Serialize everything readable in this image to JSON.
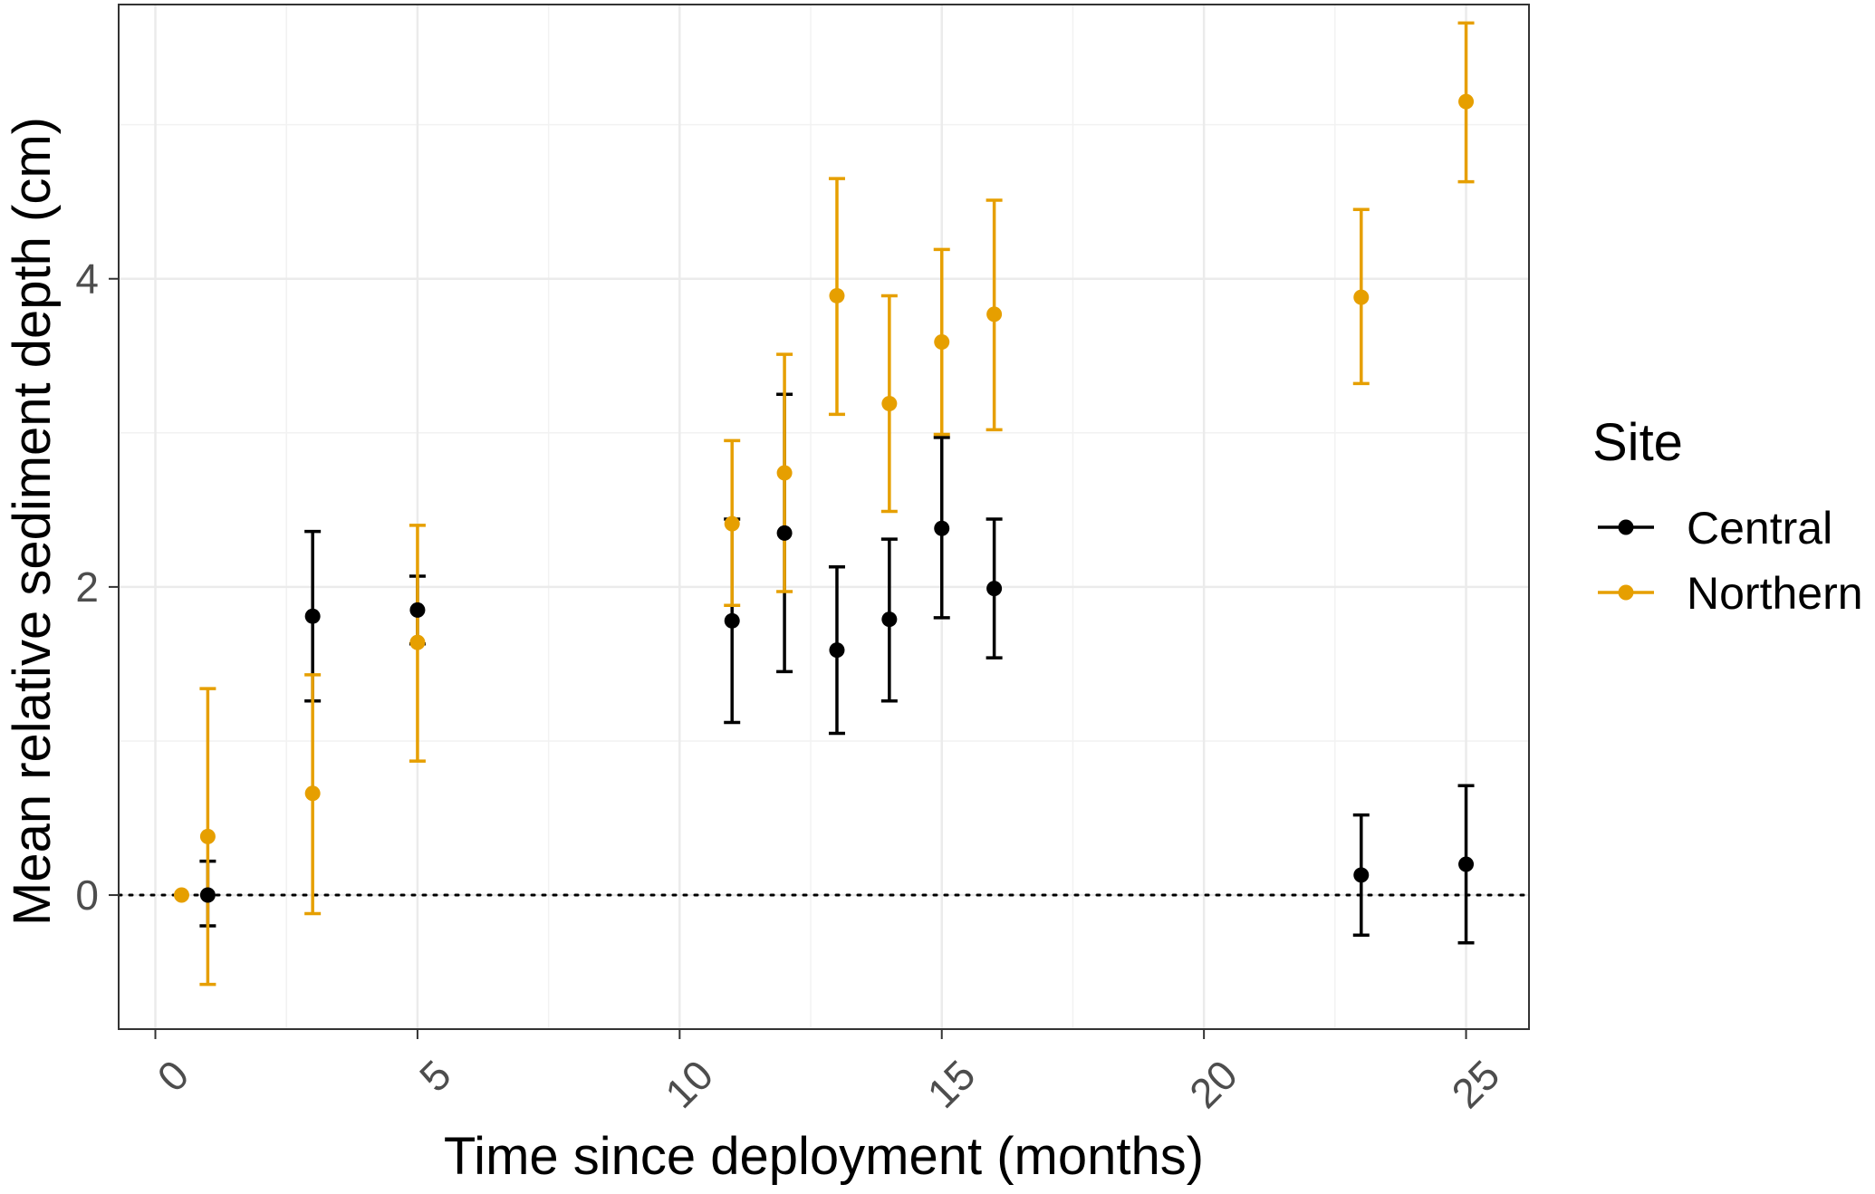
{
  "chart_data": {
    "type": "scatter",
    "title": "",
    "xlabel": "Time since deployment (months)",
    "ylabel": "Mean relative sediment depth (cm)",
    "xlim": [
      -0.7,
      26.2
    ],
    "ylim": [
      -0.87,
      5.78
    ],
    "x_ticks": [
      0,
      5,
      10,
      15,
      20,
      25
    ],
    "x_tick_labels": [
      "0",
      "5",
      "10",
      "15",
      "20",
      "25"
    ],
    "y_ticks": [
      0,
      2,
      4
    ],
    "y_tick_labels": [
      "0",
      "2",
      "4"
    ],
    "x_minor_gridlines": [
      2.5,
      7.5,
      12.5,
      17.5,
      22.5
    ],
    "y_minor_gridlines": [
      1,
      3,
      5
    ],
    "reference_line": {
      "y": 0,
      "style": "dotted"
    },
    "legend": {
      "title": "Site",
      "position": "right"
    },
    "series": [
      {
        "name": "Central",
        "color": "#000000",
        "points": [
          {
            "x": 1,
            "y": 0.0,
            "lower": -0.2,
            "upper": 0.22
          },
          {
            "x": 3,
            "y": 1.81,
            "lower": 1.26,
            "upper": 2.36
          },
          {
            "x": 5,
            "y": 1.85,
            "lower": 1.63,
            "upper": 2.07
          },
          {
            "x": 11,
            "y": 1.78,
            "lower": 1.12,
            "upper": 2.44
          },
          {
            "x": 12,
            "y": 2.35,
            "lower": 1.45,
            "upper": 3.25
          },
          {
            "x": 13,
            "y": 1.59,
            "lower": 1.05,
            "upper": 2.13
          },
          {
            "x": 14,
            "y": 1.79,
            "lower": 1.26,
            "upper": 2.31
          },
          {
            "x": 15,
            "y": 2.38,
            "lower": 1.8,
            "upper": 2.97
          },
          {
            "x": 16,
            "y": 1.99,
            "lower": 1.54,
            "upper": 2.44
          },
          {
            "x": 23,
            "y": 0.13,
            "lower": -0.26,
            "upper": 0.52
          },
          {
            "x": 25,
            "y": 0.2,
            "lower": -0.31,
            "upper": 0.71
          }
        ]
      },
      {
        "name": "Northern",
        "color": "#E69F00",
        "points": [
          {
            "x": 0.5,
            "y": 0.0,
            "lower": 0.0,
            "upper": 0.0
          },
          {
            "x": 1,
            "y": 0.38,
            "lower": -0.58,
            "upper": 1.34
          },
          {
            "x": 3,
            "y": 0.66,
            "lower": -0.12,
            "upper": 1.43
          },
          {
            "x": 5,
            "y": 1.64,
            "lower": 0.87,
            "upper": 2.4
          },
          {
            "x": 11,
            "y": 2.41,
            "lower": 1.88,
            "upper": 2.95
          },
          {
            "x": 12,
            "y": 2.74,
            "lower": 1.97,
            "upper": 3.51
          },
          {
            "x": 13,
            "y": 3.89,
            "lower": 3.12,
            "upper": 4.65
          },
          {
            "x": 14,
            "y": 3.19,
            "lower": 2.49,
            "upper": 3.89
          },
          {
            "x": 15,
            "y": 3.59,
            "lower": 2.99,
            "upper": 4.19
          },
          {
            "x": 16,
            "y": 3.77,
            "lower": 3.02,
            "upper": 4.51
          },
          {
            "x": 23,
            "y": 3.88,
            "lower": 3.32,
            "upper": 4.45
          },
          {
            "x": 25,
            "y": 5.15,
            "lower": 4.63,
            "upper": 5.66
          }
        ]
      }
    ]
  }
}
